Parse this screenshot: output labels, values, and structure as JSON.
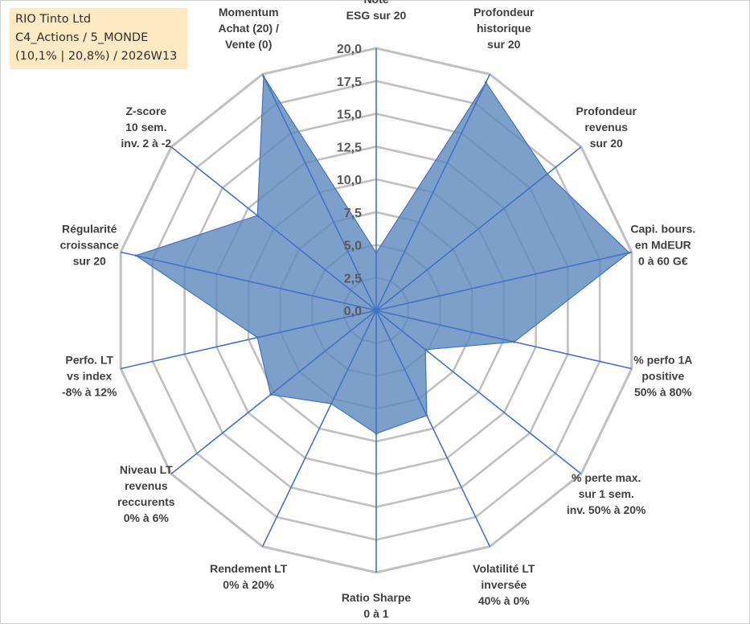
{
  "info": {
    "line1": "RIO Tinto Ltd",
    "line2": "C4_Actions / 5_MONDE",
    "line3": "(10,1% | 20,8%) / 2026W13"
  },
  "colors": {
    "fill": "#5b88bd",
    "stroke": "#4472c4",
    "grid": "#c0c0c0",
    "spoke": "#4472c4"
  },
  "chart_data": {
    "type": "radar",
    "title": "",
    "rmax": 20,
    "ticks": [
      "0,0",
      "2,5",
      "5,0",
      "7,5",
      "10,0",
      "12,5",
      "15,0",
      "17,5",
      "20,0"
    ],
    "categories": [
      [
        "Note",
        "ESG sur 20"
      ],
      [
        "Profondeur",
        "historique",
        "sur 20"
      ],
      [
        "Profondeur",
        "revenus",
        "sur 20"
      ],
      [
        "Capi. bours.",
        "en MdEUR",
        "0 à 60 G€"
      ],
      [
        "% perfo 1A",
        "positive",
        "50% à 80%"
      ],
      [
        "% perte max.",
        "sur 1 sem.",
        "inv. 50% à 20%"
      ],
      [
        "Volatilité LT",
        "inversée",
        "40% à 0%"
      ],
      [
        "Ratio Sharpe",
        "0 à 1"
      ],
      [
        "Rendement LT",
        "0% à 20%"
      ],
      [
        "Niveau LT",
        "revenus",
        "reccurents",
        "0% à 6%"
      ],
      [
        "Perfo. LT",
        "vs index",
        "-8% à 12%"
      ],
      [
        "Régularité",
        "croissance",
        "sur 20"
      ],
      [
        "Z-score",
        "10 sem.",
        "inv. 2 à -2"
      ],
      [
        "Momentum",
        "Achat (20) /",
        "Vente (0)"
      ]
    ],
    "series": [
      {
        "name": "RIO Tinto Ltd",
        "values": [
          4.4,
          19.3,
          16.7,
          19.8,
          10.8,
          4.8,
          8.9,
          9.4,
          7.9,
          10.3,
          9.3,
          18.8,
          11.6,
          19.8
        ]
      }
    ]
  }
}
